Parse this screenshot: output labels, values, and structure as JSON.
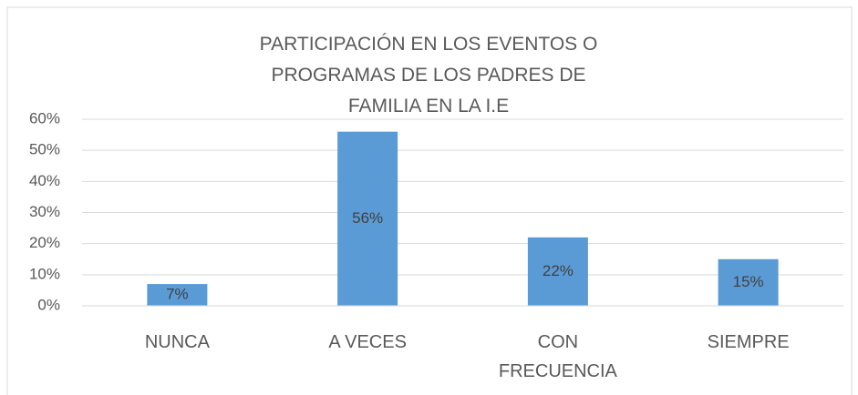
{
  "chart_data": {
    "type": "bar",
    "title": "PARTICIPACIÓN EN LOS EVENTOS O PROGRAMAS DE LOS PADRES DE FAMILIA EN LA I.E",
    "categories": [
      "NUNCA",
      "A VECES",
      "CON FRECUENCIA",
      "SIEMPRE"
    ],
    "values": [
      7,
      56,
      22,
      15
    ],
    "value_labels": [
      "7%",
      "56%",
      "22%",
      "15%"
    ],
    "color": "#5b9bd5",
    "ylim": [
      0,
      60
    ],
    "yticks": [
      {
        "value": 0,
        "label": "0%"
      },
      {
        "value": 10,
        "label": "10%"
      },
      {
        "value": 20,
        "label": "20%"
      },
      {
        "value": 30,
        "label": "30%"
      },
      {
        "value": 40,
        "label": "40%"
      },
      {
        "value": 50,
        "label": "50%"
      },
      {
        "value": 60,
        "label": "60%"
      }
    ],
    "grid": true
  }
}
